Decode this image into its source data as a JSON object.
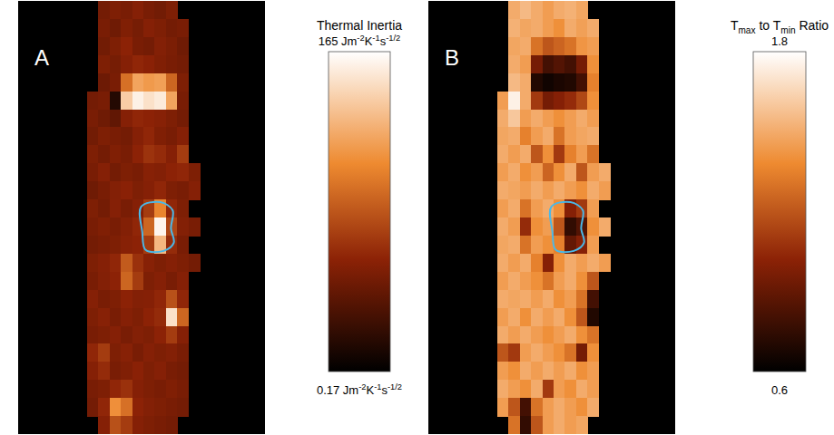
{
  "chart_data": [
    {
      "type": "heatmap",
      "panel_label": "A",
      "tick_labels": false,
      "z": [
        [
          null,
          48,
          52,
          50,
          55,
          50,
          47,
          52,
          null,
          null
        ],
        [
          null,
          50,
          46,
          53,
          49,
          55,
          52,
          48,
          50,
          null
        ],
        [
          null,
          47,
          52,
          58,
          50,
          48,
          54,
          51,
          46,
          null
        ],
        [
          null,
          52,
          49,
          55,
          60,
          57,
          53,
          50,
          48,
          null
        ],
        [
          null,
          45,
          50,
          95,
          120,
          115,
          118,
          90,
          52,
          null
        ],
        [
          48,
          50,
          15,
          140,
          158,
          150,
          155,
          120,
          50,
          null
        ],
        [
          50,
          46,
          40,
          55,
          60,
          58,
          56,
          52,
          48,
          null
        ],
        [
          47,
          52,
          50,
          48,
          55,
          60,
          53,
          50,
          55,
          null
        ],
        [
          52,
          48,
          53,
          50,
          58,
          66,
          62,
          55,
          70,
          null
        ],
        [
          50,
          55,
          48,
          52,
          50,
          56,
          54,
          58,
          60,
          52
        ],
        [
          46,
          50,
          54,
          57,
          52,
          55,
          60,
          52,
          50,
          55
        ],
        [
          52,
          48,
          55,
          50,
          55,
          70,
          105,
          60,
          52,
          null
        ],
        [
          50,
          53,
          50,
          54,
          60,
          90,
          160,
          75,
          54,
          50
        ],
        [
          48,
          50,
          52,
          56,
          58,
          70,
          130,
          62,
          50,
          null
        ],
        [
          52,
          55,
          60,
          85,
          65,
          56,
          52,
          55,
          52,
          48
        ],
        [
          50,
          54,
          58,
          90,
          70,
          52,
          55,
          50,
          55,
          null
        ],
        [
          55,
          50,
          52,
          58,
          54,
          55,
          60,
          80,
          60,
          null
        ],
        [
          52,
          56,
          50,
          55,
          52,
          58,
          62,
          150,
          90,
          null
        ],
        [
          50,
          52,
          55,
          50,
          54,
          52,
          58,
          70,
          55,
          null
        ],
        [
          60,
          70,
          52,
          56,
          50,
          55,
          52,
          54,
          50,
          null
        ],
        [
          55,
          62,
          50,
          53,
          57,
          52,
          55,
          50,
          48,
          null
        ],
        [
          50,
          52,
          60,
          65,
          55,
          52,
          50,
          53,
          50,
          null
        ],
        [
          48,
          60,
          110,
          95,
          58,
          54,
          52,
          50,
          48,
          null
        ],
        [
          null,
          55,
          80,
          70,
          55,
          52,
          50,
          48,
          null,
          null
        ]
      ],
      "colorbar": {
        "title": "Thermal Inertia",
        "range": [
          0.17,
          165
        ],
        "ticks": [
          {
            "value": 0.17,
            "label": "0.17 Jm-2K-1s-1/2"
          },
          {
            "value": 165,
            "label": "165 Jm-2K-1s-1/2"
          }
        ]
      }
    },
    {
      "type": "heatmap",
      "panel_label": "B",
      "tick_labels": false,
      "z": [
        [
          null,
          1.5,
          1.55,
          1.5,
          1.45,
          1.5,
          1.52,
          1.48,
          null,
          null
        ],
        [
          null,
          1.52,
          1.48,
          1.5,
          1.45,
          1.4,
          1.5,
          1.46,
          1.5,
          null
        ],
        [
          null,
          1.48,
          1.5,
          1.3,
          1.2,
          1.25,
          1.3,
          1.42,
          1.45,
          null
        ],
        [
          null,
          1.5,
          1.45,
          0.95,
          0.8,
          0.85,
          0.8,
          0.95,
          1.4,
          null
        ],
        [
          null,
          1.55,
          1.5,
          0.7,
          0.65,
          0.68,
          0.7,
          0.8,
          1.35,
          null
        ],
        [
          1.45,
          1.75,
          1.5,
          1.1,
          0.95,
          1.0,
          1.05,
          1.15,
          1.4,
          null
        ],
        [
          1.5,
          1.6,
          1.45,
          1.5,
          1.45,
          1.4,
          1.45,
          1.5,
          1.45,
          null
        ],
        [
          1.48,
          1.5,
          1.35,
          1.45,
          1.5,
          1.3,
          1.45,
          1.48,
          1.5,
          null
        ],
        [
          1.5,
          1.45,
          1.5,
          1.2,
          1.4,
          1.1,
          1.35,
          1.45,
          1.3,
          null
        ],
        [
          1.45,
          1.5,
          1.4,
          1.45,
          1.25,
          1.4,
          1.5,
          1.2,
          1.45,
          1.5
        ],
        [
          1.5,
          1.48,
          1.45,
          1.5,
          1.45,
          1.5,
          1.45,
          1.4,
          1.5,
          1.45
        ],
        [
          1.45,
          1.5,
          1.3,
          1.45,
          1.5,
          1.4,
          1.0,
          1.1,
          1.45,
          null
        ],
        [
          1.5,
          1.45,
          1.05,
          1.4,
          1.45,
          1.2,
          0.75,
          0.85,
          1.4,
          1.5
        ],
        [
          1.48,
          1.5,
          1.3,
          1.45,
          1.4,
          1.35,
          0.9,
          1.0,
          1.45,
          null
        ],
        [
          1.5,
          1.45,
          1.5,
          1.35,
          1.0,
          1.4,
          1.5,
          1.45,
          1.5,
          1.45
        ],
        [
          1.45,
          1.5,
          1.45,
          1.4,
          1.3,
          1.45,
          1.5,
          1.4,
          1.2,
          null
        ],
        [
          1.5,
          1.48,
          1.5,
          1.45,
          1.5,
          1.4,
          1.45,
          1.3,
          0.8,
          null
        ],
        [
          1.45,
          1.5,
          1.4,
          1.5,
          1.45,
          1.5,
          1.4,
          1.2,
          0.7,
          null
        ],
        [
          1.5,
          1.45,
          1.5,
          1.45,
          1.4,
          1.45,
          1.5,
          1.4,
          1.3,
          null
        ],
        [
          1.2,
          1.1,
          1.45,
          1.5,
          1.45,
          1.4,
          1.3,
          0.95,
          1.4,
          null
        ],
        [
          1.45,
          1.4,
          1.5,
          1.45,
          1.5,
          1.45,
          1.5,
          1.4,
          1.45,
          null
        ],
        [
          1.5,
          1.45,
          1.4,
          1.5,
          1.1,
          1.45,
          1.4,
          1.5,
          1.45,
          null
        ],
        [
          1.45,
          1.2,
          0.8,
          1.3,
          1.45,
          1.5,
          1.45,
          1.4,
          1.5,
          null
        ],
        [
          null,
          1.3,
          0.75,
          1.2,
          1.45,
          1.5,
          1.45,
          1.48,
          null,
          null
        ]
      ],
      "colorbar": {
        "title": "Tmax to Tmin Ratio",
        "range": [
          0.6,
          1.8
        ],
        "ticks": [
          0.6,
          1.8
        ]
      }
    }
  ]
}
